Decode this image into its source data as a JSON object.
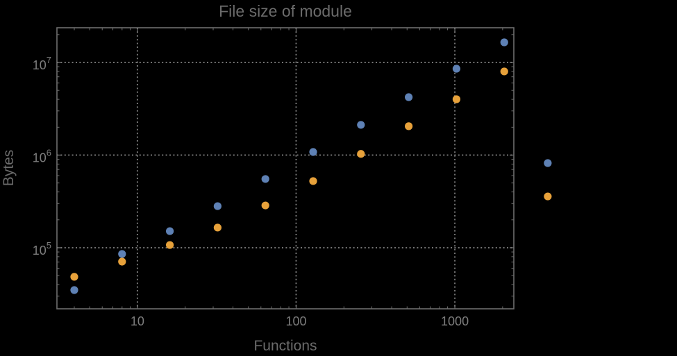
{
  "chart_data": {
    "type": "scatter",
    "title": "File size of module",
    "grid": "dotted",
    "legend": "none",
    "x_axis": {
      "label": "Functions",
      "scale": "log",
      "range": [
        3.11,
        2353
      ],
      "ticks": [
        {
          "value": 10,
          "label": "10"
        },
        {
          "value": 100,
          "label": "100"
        },
        {
          "value": 1000,
          "label": "1000"
        }
      ]
    },
    "y_axis": {
      "label": "Bytes",
      "scale": "log",
      "range": [
        21900,
        23700000
      ],
      "ticks": [
        {
          "value": 100000,
          "base": "10",
          "exponent": "5"
        },
        {
          "value": 1000000,
          "base": "10",
          "exponent": "6"
        },
        {
          "value": 10000000,
          "base": "10",
          "exponent": "7"
        }
      ]
    },
    "colors": {
      "background": "#000000",
      "frame": "#6f6f6f",
      "grid": "#757575",
      "tick_label": "#7d7d7d",
      "title": "#6b6b6b",
      "axis_label": "#6b6b6b",
      "series_blue": "#5E81B5",
      "series_orange": "#E7A13A"
    },
    "series": [
      {
        "name": "blue",
        "color": "#5E81B5",
        "points": [
          [
            4,
            34900
          ],
          [
            8,
            85600
          ],
          [
            16,
            151000
          ],
          [
            32,
            281000
          ],
          [
            64,
            552000
          ],
          [
            128,
            1080000
          ],
          [
            256,
            2120000
          ],
          [
            512,
            4220000
          ],
          [
            1024,
            8560000
          ],
          [
            2048,
            16500000
          ],
          [
            3850,
            820000
          ]
        ]
      },
      {
        "name": "orange",
        "color": "#E7A13A",
        "points": [
          [
            4,
            48500
          ],
          [
            8,
            70800
          ],
          [
            16,
            107000
          ],
          [
            32,
            165000
          ],
          [
            64,
            286000
          ],
          [
            128,
            524000
          ],
          [
            256,
            1030000
          ],
          [
            512,
            2050000
          ],
          [
            1024,
            4010000
          ],
          [
            2048,
            8000000
          ],
          [
            3850,
            358000
          ]
        ]
      }
    ]
  }
}
